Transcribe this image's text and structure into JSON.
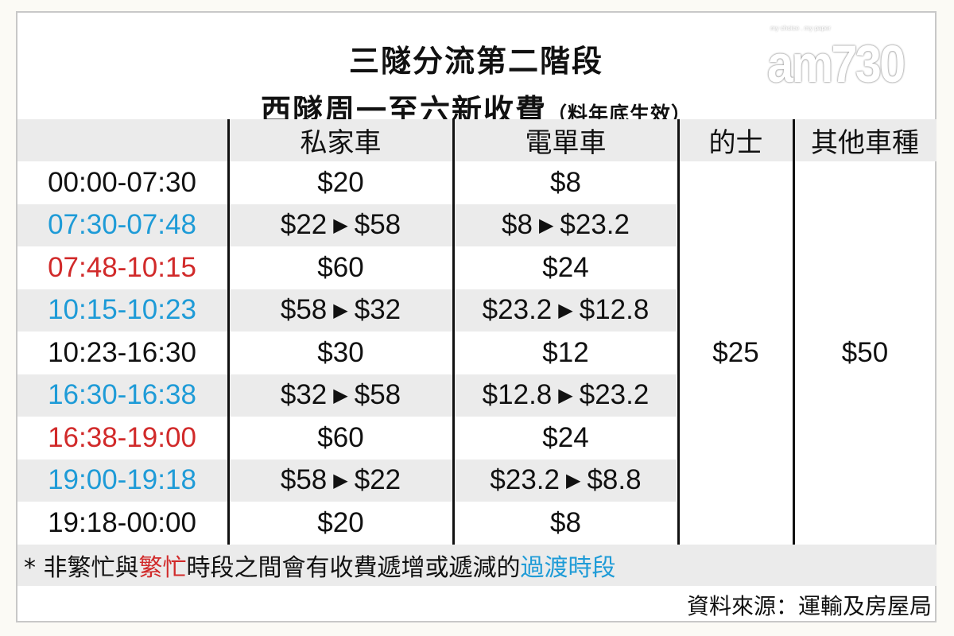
{
  "title_line1": "三隧分流第二階段",
  "title_line2": "西隧周一至六新收費",
  "title_note": "（料年底生效）",
  "logo": {
    "text": "am730",
    "tagline": "my choice . my paper"
  },
  "colors": {
    "transition": "#1e9bd7",
    "peak": "#d12a2a",
    "normal": "#111111",
    "band": "#ebebeb"
  },
  "table": {
    "headers": [
      "",
      "私家車",
      "電單車",
      "的士",
      "其他車種"
    ],
    "rows": [
      {
        "time": "00:00-07:30",
        "type": "normal",
        "private_from": "$20",
        "private_to": "",
        "moto_from": "$8",
        "moto_to": ""
      },
      {
        "time": "07:30-07:48",
        "type": "transition",
        "private_from": "$22",
        "private_to": "$58",
        "moto_from": "$8",
        "moto_to": "$23.2"
      },
      {
        "time": "07:48-10:15",
        "type": "peak",
        "private_from": "$60",
        "private_to": "",
        "moto_from": "$24",
        "moto_to": ""
      },
      {
        "time": "10:15-10:23",
        "type": "transition",
        "private_from": "$58",
        "private_to": "$32",
        "moto_from": "$23.2",
        "moto_to": "$12.8"
      },
      {
        "time": "10:23-16:30",
        "type": "normal",
        "private_from": "$30",
        "private_to": "",
        "moto_from": "$12",
        "moto_to": ""
      },
      {
        "time": "16:30-16:38",
        "type": "transition",
        "private_from": "$32",
        "private_to": "$58",
        "moto_from": "$12.8",
        "moto_to": "$23.2"
      },
      {
        "time": "16:38-19:00",
        "type": "peak",
        "private_from": "$60",
        "private_to": "",
        "moto_from": "$24",
        "moto_to": ""
      },
      {
        "time": "19:00-19:18",
        "type": "transition",
        "private_from": "$58",
        "private_to": "$22",
        "moto_from": "$23.2",
        "moto_to": "$8.8"
      },
      {
        "time": "19:18-00:00",
        "type": "normal",
        "private_from": "$20",
        "private_to": "",
        "moto_from": "$8",
        "moto_to": ""
      }
    ],
    "taxi": "$25",
    "others": "$50"
  },
  "footnote": {
    "p1": "* 非繁忙與",
    "p2": "繁忙",
    "p3": "時段之間會有收費遞增或遞減的",
    "p4": "過渡時段"
  },
  "source": "資料來源：運輸及房屋局"
}
